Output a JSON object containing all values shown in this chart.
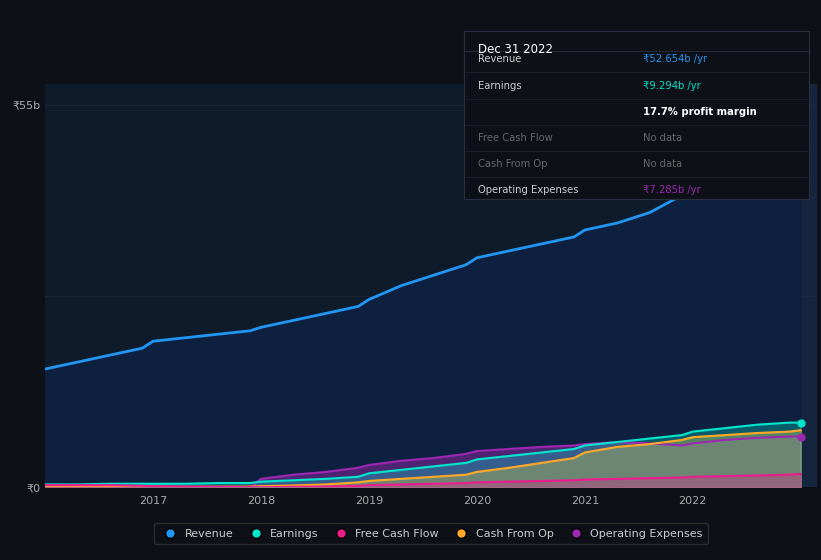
{
  "background_color": "#0d1117",
  "plot_bg_color": "#0d1b2a",
  "y_label_top": "₹55b",
  "y_label_zero": "₹0",
  "xlabel_ticks": [
    "2017",
    "2018",
    "2019",
    "2020",
    "2021",
    "2022"
  ],
  "legend_items": [
    {
      "label": "Revenue",
      "color": "#2196f3"
    },
    {
      "label": "Earnings",
      "color": "#00e5cc"
    },
    {
      "label": "Free Cash Flow",
      "color": "#e91e8c"
    },
    {
      "label": "Cash From Op",
      "color": "#ffa726"
    },
    {
      "label": "Operating Expenses",
      "color": "#9c27b0"
    }
  ],
  "revenue_x": [
    2016.0,
    2016.3,
    2016.6,
    2016.9,
    2017.0,
    2017.3,
    2017.6,
    2017.9,
    2018.0,
    2018.3,
    2018.6,
    2018.9,
    2019.0,
    2019.3,
    2019.6,
    2019.9,
    2020.0,
    2020.3,
    2020.6,
    2020.9,
    2021.0,
    2021.3,
    2021.6,
    2021.9,
    2022.0,
    2022.3,
    2022.6,
    2022.9,
    2023.0
  ],
  "revenue_y": [
    17,
    18,
    19,
    20,
    21,
    21.5,
    22,
    22.5,
    23,
    24,
    25,
    26,
    27,
    29,
    30.5,
    32,
    33,
    34,
    35,
    36,
    37,
    38,
    39.5,
    42,
    44,
    47,
    49.5,
    52,
    52.654
  ],
  "revenue_color": "#2196f3",
  "revenue_fill_color": "#0d2040",
  "earnings_x": [
    2016.0,
    2016.3,
    2016.6,
    2016.9,
    2017.0,
    2017.3,
    2017.6,
    2017.9,
    2018.0,
    2018.3,
    2018.6,
    2018.9,
    2019.0,
    2019.3,
    2019.6,
    2019.9,
    2020.0,
    2020.3,
    2020.6,
    2020.9,
    2021.0,
    2021.3,
    2021.6,
    2021.9,
    2022.0,
    2022.3,
    2022.6,
    2022.9,
    2023.0
  ],
  "earnings_y": [
    0.4,
    0.4,
    0.5,
    0.5,
    0.5,
    0.5,
    0.6,
    0.6,
    0.8,
    1.0,
    1.2,
    1.5,
    2.0,
    2.5,
    3.0,
    3.5,
    4.0,
    4.5,
    5.0,
    5.5,
    6.0,
    6.5,
    7.0,
    7.5,
    8.0,
    8.5,
    9.0,
    9.294,
    9.294
  ],
  "earnings_color": "#00e5cc",
  "fcf_x": [
    2016.0,
    2016.3,
    2016.6,
    2016.9,
    2017.0,
    2017.3,
    2017.6,
    2017.9,
    2018.0,
    2018.3,
    2018.6,
    2018.9,
    2019.0,
    2019.3,
    2019.6,
    2019.9,
    2020.0,
    2020.3,
    2020.6,
    2020.9,
    2021.0,
    2021.3,
    2021.6,
    2021.9,
    2022.0,
    2022.3,
    2022.6,
    2022.9,
    2023.0
  ],
  "fcf_y": [
    0.3,
    0.3,
    0.3,
    0.2,
    0.15,
    0.1,
    0.08,
    0.05,
    0.0,
    0.05,
    0.1,
    0.2,
    0.3,
    0.4,
    0.5,
    0.6,
    0.7,
    0.8,
    0.9,
    1.0,
    1.1,
    1.2,
    1.3,
    1.4,
    1.5,
    1.6,
    1.7,
    1.8,
    1.9
  ],
  "fcf_color": "#e91e8c",
  "cfo_x": [
    2016.0,
    2016.3,
    2016.6,
    2016.9,
    2017.0,
    2017.3,
    2017.6,
    2017.9,
    2018.0,
    2018.3,
    2018.6,
    2018.9,
    2019.0,
    2019.3,
    2019.6,
    2019.9,
    2020.0,
    2020.3,
    2020.6,
    2020.9,
    2021.0,
    2021.3,
    2021.6,
    2021.9,
    2022.0,
    2022.3,
    2022.6,
    2022.9,
    2023.0
  ],
  "cfo_y": [
    0.1,
    0.08,
    0.1,
    0.1,
    0.08,
    0.05,
    0.08,
    0.1,
    0.15,
    0.25,
    0.4,
    0.7,
    0.9,
    1.2,
    1.5,
    1.8,
    2.2,
    2.8,
    3.5,
    4.2,
    5.0,
    5.8,
    6.2,
    6.8,
    7.2,
    7.5,
    7.8,
    8.0,
    8.2
  ],
  "cfo_color": "#ffa726",
  "oe_x": [
    2016.0,
    2016.3,
    2016.6,
    2016.9,
    2017.0,
    2017.3,
    2017.6,
    2017.9,
    2018.0,
    2018.3,
    2018.6,
    2018.9,
    2019.0,
    2019.3,
    2019.6,
    2019.9,
    2020.0,
    2020.3,
    2020.6,
    2020.9,
    2021.0,
    2021.3,
    2021.6,
    2021.9,
    2022.0,
    2022.3,
    2022.6,
    2022.9,
    2023.0
  ],
  "oe_y": [
    0.0,
    0.0,
    0.0,
    0.0,
    0.0,
    0.0,
    0.0,
    0.0,
    1.2,
    1.8,
    2.2,
    2.8,
    3.2,
    3.8,
    4.2,
    4.8,
    5.2,
    5.5,
    5.8,
    6.0,
    6.2,
    6.5,
    6.3,
    6.0,
    6.3,
    6.8,
    7.1,
    7.285,
    7.285
  ],
  "oe_color": "#9c27b0",
  "tooltip_title": "Dec 31 2022",
  "tooltip_rows": [
    {
      "label": "Revenue",
      "value": "₹52.654b /yr",
      "value_color": "#2196f3",
      "label_color": "#cccccc",
      "bold_value": false
    },
    {
      "label": "Earnings",
      "value": "₹9.294b /yr",
      "value_color": "#00e5cc",
      "label_color": "#cccccc",
      "bold_value": false
    },
    {
      "label": "",
      "value": "17.7% profit margin",
      "value_color": "#ffffff",
      "label_color": "",
      "bold_value": true
    },
    {
      "label": "Free Cash Flow",
      "value": "No data",
      "value_color": "#666666",
      "label_color": "#666666",
      "bold_value": false
    },
    {
      "label": "Cash From Op",
      "value": "No data",
      "value_color": "#666666",
      "label_color": "#666666",
      "bold_value": false
    },
    {
      "label": "Operating Expenses",
      "value": "₹7.285b /yr",
      "value_color": "#9c27b0",
      "label_color": "#cccccc",
      "bold_value": false
    }
  ]
}
